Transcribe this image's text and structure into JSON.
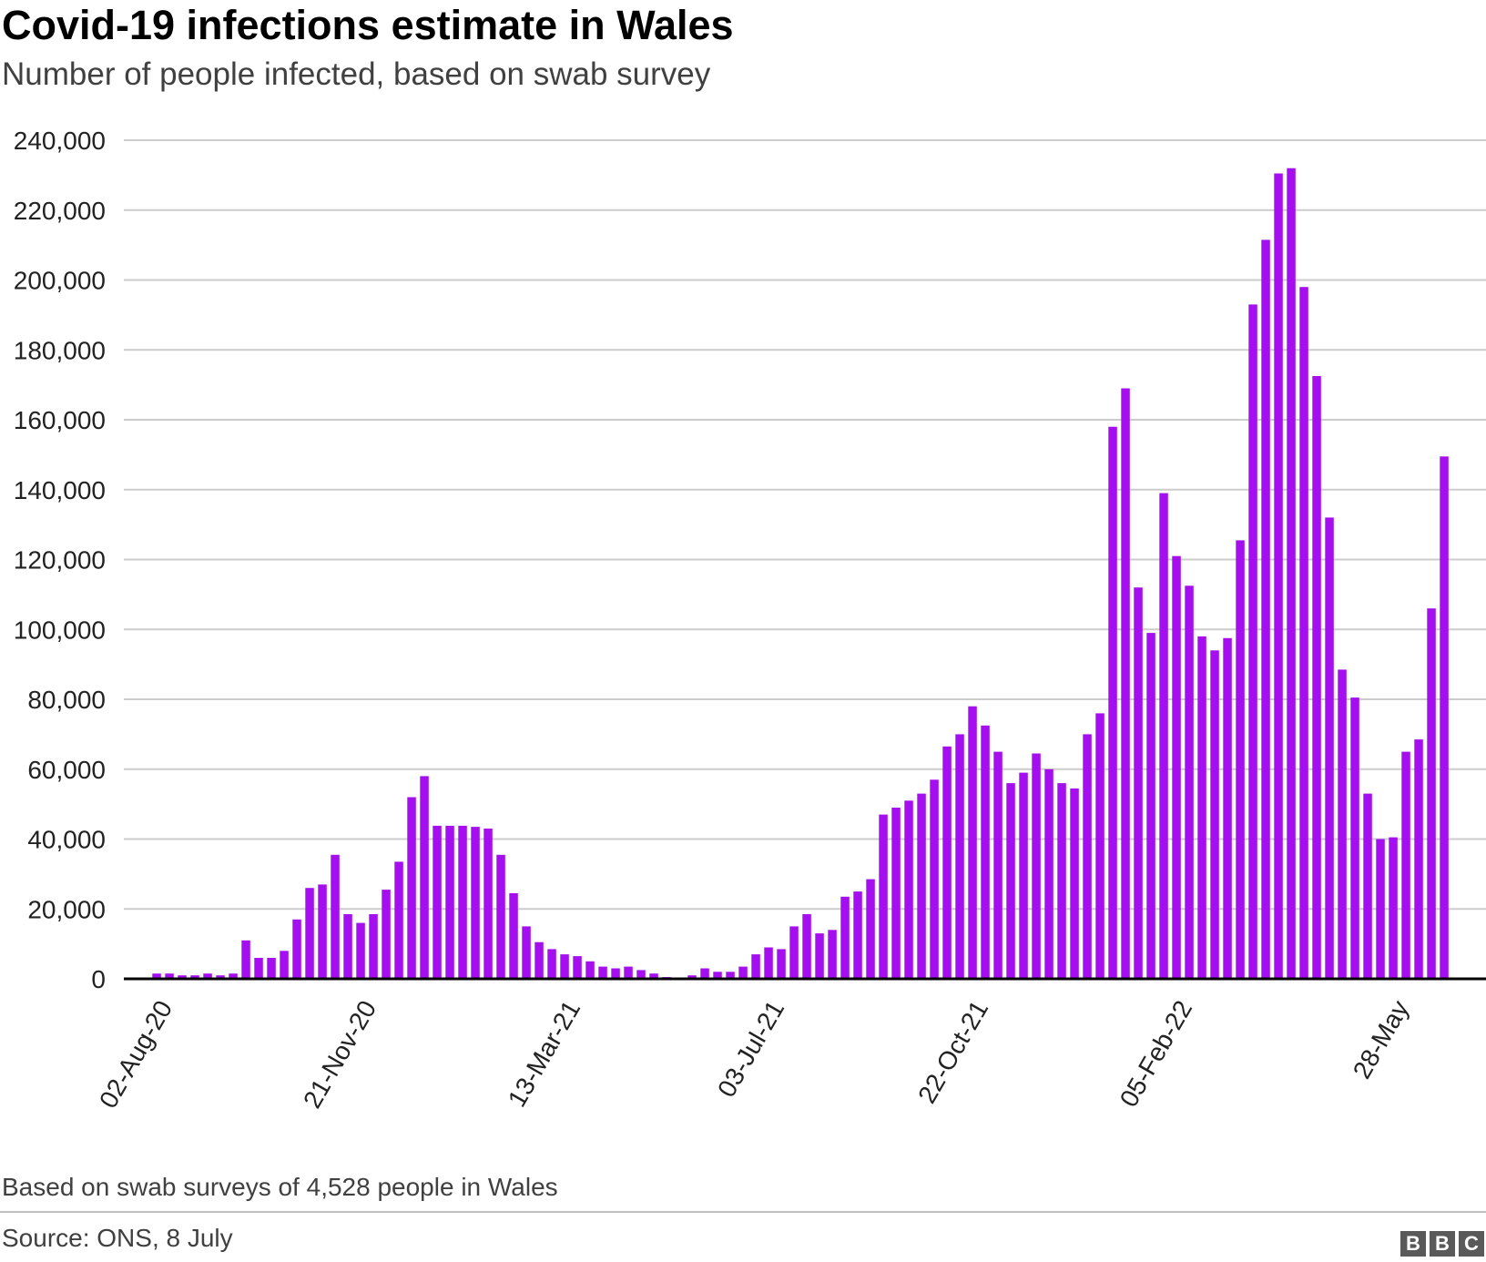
{
  "header": {
    "title": "Covid-19 infections estimate in Wales",
    "subtitle": "Number of people infected, based on swab survey"
  },
  "footer": {
    "note": "Based on swab surveys of 4,528 people in Wales",
    "source": "Source: ONS, 8 July",
    "logo_letters": [
      "B",
      "B",
      "C"
    ]
  },
  "colors": {
    "bar": "#a50ff0",
    "grid": "#cccccc",
    "axis": "#000000"
  },
  "chart_data": {
    "type": "bar",
    "title": "Covid-19 infections estimate in Wales",
    "subtitle": "Number of people infected, based on swab survey",
    "ylim": [
      0,
      240000
    ],
    "y_ticks": [
      0,
      20000,
      40000,
      60000,
      80000,
      100000,
      120000,
      140000,
      160000,
      180000,
      200000,
      220000,
      240000
    ],
    "y_tick_labels": [
      "0",
      "20,000",
      "40,000",
      "60,000",
      "80,000",
      "100,000",
      "120,000",
      "140,000",
      "160,000",
      "180,000",
      "200,000",
      "220,000",
      "240,000"
    ],
    "x_tick_labels": [
      {
        "label": "02-Aug-20",
        "index": 0
      },
      {
        "label": "21-Nov-20",
        "index": 16
      },
      {
        "label": "13-Mar-21",
        "index": 32
      },
      {
        "label": "03-Jul-21",
        "index": 48
      },
      {
        "label": "22-Oct-21",
        "index": 64
      },
      {
        "label": "05-Feb-22",
        "index": 80
      },
      {
        "label": "28-May",
        "index": 97
      }
    ],
    "grid": true,
    "values": [
      1500,
      1500,
      1000,
      1000,
      1500,
      1000,
      1500,
      11000,
      6000,
      6000,
      8000,
      17000,
      26000,
      27000,
      35500,
      18500,
      16000,
      18500,
      25500,
      33500,
      52000,
      58000,
      43800,
      43800,
      43800,
      43500,
      43000,
      35500,
      24500,
      15000,
      10500,
      8500,
      7000,
      6500,
      5000,
      3500,
      3000,
      3500,
      2500,
      1500,
      500,
      300,
      1000,
      3000,
      2000,
      2000,
      3500,
      7000,
      9000,
      8500,
      15000,
      18500,
      13000,
      14000,
      23500,
      25000,
      28500,
      47000,
      49000,
      51000,
      53000,
      57000,
      66500,
      70000,
      78000,
      72500,
      65000,
      56000,
      59000,
      64500,
      60000,
      56000,
      54500,
      70000,
      76000,
      158000,
      169000,
      112000,
      99000,
      139000,
      121000,
      112500,
      98000,
      94000,
      97500,
      125500,
      193000,
      211500,
      230500,
      232000,
      198000,
      172500,
      132000,
      88500,
      80500,
      53000,
      40000,
      40500,
      65000,
      68500,
      106000,
      149500
    ]
  }
}
